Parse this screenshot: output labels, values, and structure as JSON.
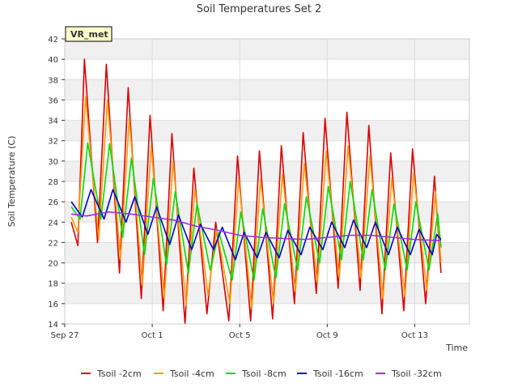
{
  "chart_data": {
    "type": "line",
    "title": "Soil Temperatures Set 2",
    "xlabel": "Time",
    "ylabel": "Soil Temperature (C)",
    "ylim": [
      14,
      42
    ],
    "yticks": [
      14,
      16,
      18,
      20,
      22,
      24,
      26,
      28,
      30,
      32,
      34,
      36,
      38,
      40,
      42
    ],
    "xlim_days": [
      0,
      18.5
    ],
    "xticks": [
      {
        "day": 0,
        "label": "Sep 27"
      },
      {
        "day": 4,
        "label": "Oct 1"
      },
      {
        "day": 8,
        "label": "Oct 5"
      },
      {
        "day": 12,
        "label": "Oct 9"
      },
      {
        "day": 16,
        "label": "Oct 13"
      }
    ],
    "grid": true,
    "legend_position": "bottom",
    "annotation": "VR_met",
    "series": [
      {
        "name": "Tsoil -2cm",
        "color": "#dd0000",
        "points": [
          [
            0.3,
            24.0
          ],
          [
            0.6,
            21.7
          ],
          [
            0.9,
            40.0
          ],
          [
            1.5,
            22.0
          ],
          [
            1.9,
            39.5
          ],
          [
            2.5,
            19.0
          ],
          [
            2.9,
            37.2
          ],
          [
            3.5,
            16.5
          ],
          [
            3.9,
            34.5
          ],
          [
            4.5,
            15.3
          ],
          [
            4.9,
            32.7
          ],
          [
            5.5,
            14.0
          ],
          [
            5.9,
            29.3
          ],
          [
            6.5,
            15.0
          ],
          [
            6.9,
            24.0
          ],
          [
            7.5,
            14.3
          ],
          [
            7.9,
            30.5
          ],
          [
            8.5,
            14.3
          ],
          [
            8.9,
            31.0
          ],
          [
            9.5,
            14.5
          ],
          [
            9.9,
            31.5
          ],
          [
            10.5,
            16.0
          ],
          [
            10.9,
            32.8
          ],
          [
            11.5,
            17.0
          ],
          [
            11.9,
            34.2
          ],
          [
            12.5,
            17.5
          ],
          [
            12.9,
            34.8
          ],
          [
            13.5,
            17.3
          ],
          [
            13.9,
            33.5
          ],
          [
            14.5,
            15.0
          ],
          [
            14.9,
            30.8
          ],
          [
            15.5,
            15.3
          ],
          [
            15.9,
            31.2
          ],
          [
            16.5,
            16.0
          ],
          [
            16.9,
            28.5
          ],
          [
            17.2,
            19.0
          ]
        ]
      },
      {
        "name": "Tsoil -4cm",
        "color": "#ff9900",
        "points": [
          [
            0.3,
            24.5
          ],
          [
            0.6,
            23.0
          ],
          [
            0.95,
            36.3
          ],
          [
            1.55,
            22.3
          ],
          [
            1.95,
            36.0
          ],
          [
            2.55,
            20.3
          ],
          [
            2.95,
            34.2
          ],
          [
            3.55,
            17.8
          ],
          [
            3.95,
            31.5
          ],
          [
            4.55,
            16.5
          ],
          [
            4.95,
            30.0
          ],
          [
            5.55,
            15.8
          ],
          [
            5.95,
            27.3
          ],
          [
            6.55,
            16.8
          ],
          [
            6.95,
            23.3
          ],
          [
            7.55,
            16.0
          ],
          [
            7.95,
            28.2
          ],
          [
            8.55,
            15.5
          ],
          [
            8.95,
            28.2
          ],
          [
            9.55,
            16.0
          ],
          [
            9.95,
            28.7
          ],
          [
            10.55,
            17.2
          ],
          [
            10.95,
            29.8
          ],
          [
            11.55,
            18.0
          ],
          [
            11.95,
            31.0
          ],
          [
            12.55,
            18.5
          ],
          [
            12.95,
            31.5
          ],
          [
            13.55,
            18.5
          ],
          [
            13.95,
            30.5
          ],
          [
            14.55,
            16.5
          ],
          [
            14.95,
            28.3
          ],
          [
            15.55,
            16.7
          ],
          [
            15.95,
            28.8
          ],
          [
            16.55,
            17.3
          ],
          [
            16.95,
            27.0
          ],
          [
            17.2,
            20.0
          ]
        ]
      },
      {
        "name": "Tsoil -8cm",
        "color": "#00dd00",
        "points": [
          [
            0.3,
            25.5
          ],
          [
            0.7,
            24.3
          ],
          [
            1.05,
            31.8
          ],
          [
            1.65,
            24.3
          ],
          [
            2.05,
            31.7
          ],
          [
            2.65,
            22.5
          ],
          [
            3.05,
            30.3
          ],
          [
            3.65,
            20.8
          ],
          [
            4.05,
            28.3
          ],
          [
            4.65,
            19.8
          ],
          [
            5.05,
            27.0
          ],
          [
            5.65,
            19.0
          ],
          [
            6.05,
            25.8
          ],
          [
            6.65,
            19.3
          ],
          [
            7.05,
            23.0
          ],
          [
            7.65,
            18.3
          ],
          [
            8.05,
            25.0
          ],
          [
            8.65,
            18.3
          ],
          [
            9.05,
            25.3
          ],
          [
            9.65,
            18.5
          ],
          [
            10.05,
            25.8
          ],
          [
            10.65,
            19.3
          ],
          [
            11.05,
            26.5
          ],
          [
            11.65,
            20.0
          ],
          [
            12.05,
            27.5
          ],
          [
            12.65,
            20.3
          ],
          [
            13.05,
            28.0
          ],
          [
            13.65,
            20.3
          ],
          [
            14.05,
            27.2
          ],
          [
            14.65,
            19.3
          ],
          [
            15.05,
            25.8
          ],
          [
            15.65,
            19.3
          ],
          [
            16.05,
            26.0
          ],
          [
            16.65,
            19.3
          ],
          [
            17.05,
            24.8
          ],
          [
            17.2,
            21.5
          ]
        ]
      },
      {
        "name": "Tsoil -16cm",
        "color": "#0000cc",
        "points": [
          [
            0.3,
            26.0
          ],
          [
            0.8,
            24.5
          ],
          [
            1.2,
            27.2
          ],
          [
            1.8,
            24.3
          ],
          [
            2.2,
            27.2
          ],
          [
            2.8,
            24.0
          ],
          [
            3.2,
            26.5
          ],
          [
            3.8,
            22.8
          ],
          [
            4.2,
            25.5
          ],
          [
            4.8,
            21.8
          ],
          [
            5.2,
            24.7
          ],
          [
            5.8,
            21.3
          ],
          [
            6.2,
            23.8
          ],
          [
            6.8,
            21.3
          ],
          [
            7.2,
            23.5
          ],
          [
            7.8,
            20.3
          ],
          [
            8.2,
            23.0
          ],
          [
            8.8,
            20.5
          ],
          [
            9.2,
            23.0
          ],
          [
            9.8,
            20.5
          ],
          [
            10.2,
            23.2
          ],
          [
            10.8,
            20.8
          ],
          [
            11.2,
            23.5
          ],
          [
            11.8,
            21.3
          ],
          [
            12.2,
            24.0
          ],
          [
            12.8,
            21.5
          ],
          [
            13.2,
            24.2
          ],
          [
            13.8,
            21.5
          ],
          [
            14.2,
            24.0
          ],
          [
            14.8,
            20.8
          ],
          [
            15.2,
            23.5
          ],
          [
            15.8,
            20.8
          ],
          [
            16.2,
            23.3
          ],
          [
            16.8,
            20.8
          ],
          [
            17.0,
            22.8
          ],
          [
            17.2,
            22.3
          ]
        ]
      },
      {
        "name": "Tsoil -32cm",
        "color": "#9933dd",
        "points": [
          [
            0.3,
            24.8
          ],
          [
            1.0,
            24.6
          ],
          [
            2.0,
            25.0
          ],
          [
            3.0,
            24.8
          ],
          [
            4.0,
            24.5
          ],
          [
            5.0,
            24.2
          ],
          [
            5.5,
            23.9
          ],
          [
            6.0,
            23.6
          ],
          [
            7.0,
            23.2
          ],
          [
            8.0,
            22.7
          ],
          [
            9.0,
            22.5
          ],
          [
            10.0,
            22.4
          ],
          [
            11.0,
            22.3
          ],
          [
            12.0,
            22.5
          ],
          [
            13.0,
            22.7
          ],
          [
            14.0,
            22.7
          ],
          [
            15.0,
            22.5
          ],
          [
            16.0,
            22.3
          ],
          [
            17.0,
            22.2
          ],
          [
            17.2,
            22.2
          ]
        ]
      }
    ]
  }
}
